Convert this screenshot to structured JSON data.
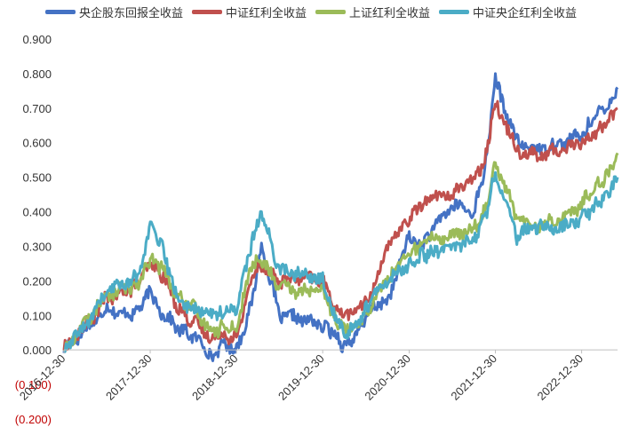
{
  "chart_data": {
    "type": "line",
    "title": "",
    "xlabel": "",
    "ylabel": "",
    "ylim": [
      -0.2,
      0.9
    ],
    "y_ticks": [
      0.9,
      0.8,
      0.7,
      0.6,
      0.5,
      0.4,
      0.3,
      0.2,
      0.1,
      0.0,
      -0.1,
      -0.2
    ],
    "y_tick_labels": [
      "0.900",
      "0.800",
      "0.700",
      "0.600",
      "0.500",
      "0.400",
      "0.300",
      "0.200",
      "0.100",
      "0.000",
      "(0.100)",
      "(0.200)"
    ],
    "negative_label_color": "#c00000",
    "x_tick_labels": [
      "2016-12-30",
      "2017-12-30",
      "2018-12-30",
      "2019-12-30",
      "2020-12-30",
      "2021-12-30",
      "2022-12-30"
    ],
    "x_range": [
      "2016-12-30",
      "2023-05-31"
    ],
    "x_tick_dates": [
      "2016-12-30",
      "2017-12-30",
      "2018-12-30",
      "2019-12-30",
      "2020-12-30",
      "2021-12-30",
      "2022-12-30"
    ],
    "grid": false,
    "legend_position": "top",
    "x": [
      "2016-12-30",
      "2017-03-31",
      "2017-06-30",
      "2017-09-30",
      "2017-11-15",
      "2017-12-30",
      "2018-02-15",
      "2018-04-30",
      "2018-06-30",
      "2018-09-30",
      "2018-10-31",
      "2018-12-30",
      "2019-02-28",
      "2019-04-15",
      "2019-06-30",
      "2019-09-30",
      "2019-12-30",
      "2020-02-15",
      "2020-03-31",
      "2020-05-31",
      "2020-07-15",
      "2020-09-30",
      "2020-12-30",
      "2021-02-15",
      "2021-03-31",
      "2021-06-30",
      "2021-09-30",
      "2021-11-15",
      "2021-12-30",
      "2022-03-31",
      "2022-06-30",
      "2022-09-30",
      "2022-12-30",
      "2023-02-28",
      "2023-04-15",
      "2023-05-31"
    ],
    "series": [
      {
        "name": "央企股东回报全收益",
        "color": "#4472c4",
        "values": [
          0.0,
          0.06,
          0.12,
          0.1,
          0.12,
          0.17,
          0.11,
          0.06,
          0.04,
          -0.02,
          0.02,
          0.0,
          0.12,
          0.3,
          0.1,
          0.09,
          0.07,
          0.05,
          0.01,
          0.05,
          0.12,
          0.14,
          0.33,
          0.3,
          0.34,
          0.42,
          0.4,
          0.52,
          0.78,
          0.6,
          0.58,
          0.6,
          0.62,
          0.68,
          0.7,
          0.76
        ]
      },
      {
        "name": "中证红利全收益",
        "color": "#c0504d",
        "values": [
          0.0,
          0.07,
          0.15,
          0.17,
          0.2,
          0.25,
          0.22,
          0.12,
          0.08,
          0.03,
          0.05,
          0.03,
          0.2,
          0.25,
          0.2,
          0.21,
          0.2,
          0.13,
          0.1,
          0.12,
          0.15,
          0.3,
          0.38,
          0.42,
          0.44,
          0.45,
          0.5,
          0.55,
          0.72,
          0.58,
          0.56,
          0.58,
          0.6,
          0.63,
          0.66,
          0.7
        ]
      },
      {
        "name": "上证红利全收益",
        "color": "#9bbb59",
        "values": [
          0.0,
          0.08,
          0.16,
          0.18,
          0.2,
          0.26,
          0.24,
          0.15,
          0.12,
          0.05,
          0.07,
          0.06,
          0.24,
          0.26,
          0.18,
          0.17,
          0.17,
          0.1,
          0.06,
          0.08,
          0.12,
          0.21,
          0.28,
          0.3,
          0.32,
          0.33,
          0.35,
          0.4,
          0.55,
          0.38,
          0.36,
          0.38,
          0.42,
          0.48,
          0.5,
          0.57
        ]
      },
      {
        "name": "中证央企红利全收益",
        "color": "#4bacc6",
        "values": [
          0.0,
          0.07,
          0.17,
          0.2,
          0.22,
          0.36,
          0.3,
          0.14,
          0.12,
          0.1,
          0.11,
          0.12,
          0.3,
          0.4,
          0.23,
          0.22,
          0.2,
          0.1,
          0.05,
          0.08,
          0.14,
          0.2,
          0.25,
          0.27,
          0.28,
          0.3,
          0.32,
          0.38,
          0.52,
          0.33,
          0.36,
          0.35,
          0.38,
          0.42,
          0.45,
          0.5
        ]
      }
    ]
  }
}
